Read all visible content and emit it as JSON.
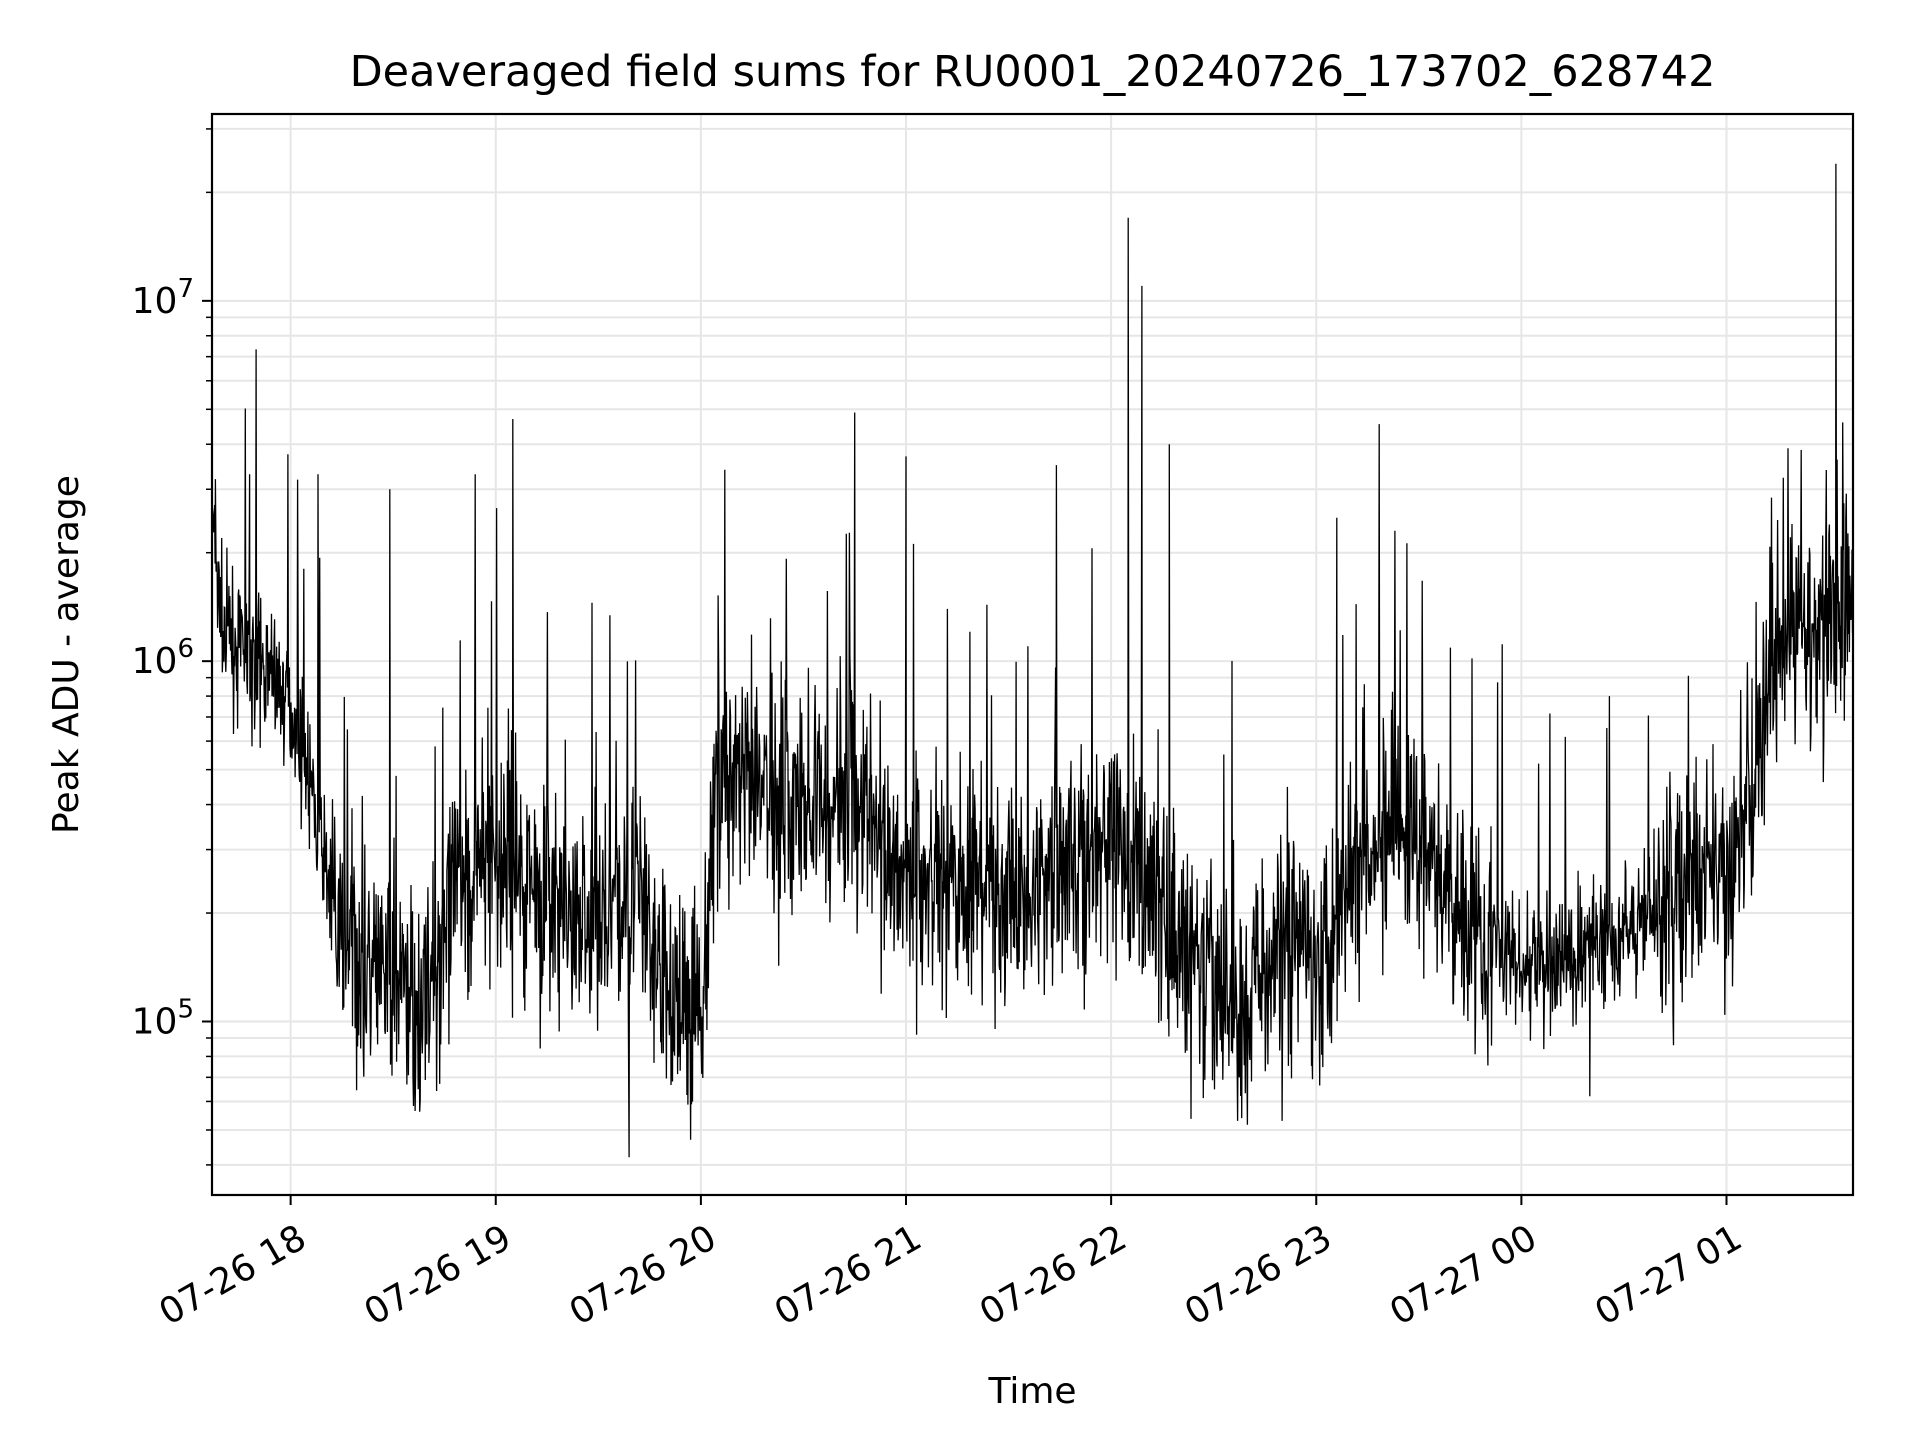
{
  "chart_data": {
    "type": "line",
    "title": "Deaveraged field sums for RU0001_20240726_173702_628742",
    "xlabel": "Time",
    "ylabel": "Peak ADU - average",
    "yscale": "log",
    "ylim": [
      33000,
      33000000
    ],
    "xlim": [
      "2024-07-26 17:37",
      "2024-07-27 01:37"
    ],
    "grid": true,
    "line_color": "#000000",
    "grid_color": "#e6e6e6",
    "x_ticks": [
      {
        "t": "2024-07-26 18:00",
        "label": "07-26 18"
      },
      {
        "t": "2024-07-26 19:00",
        "label": "07-26 19"
      },
      {
        "t": "2024-07-26 20:00",
        "label": "07-26 20"
      },
      {
        "t": "2024-07-26 21:00",
        "label": "07-26 21"
      },
      {
        "t": "2024-07-26 22:00",
        "label": "07-26 22"
      },
      {
        "t": "2024-07-26 23:00",
        "label": "07-26 23"
      },
      {
        "t": "2024-07-27 00:00",
        "label": "07-27 00"
      },
      {
        "t": "2024-07-27 01:00",
        "label": "07-27 01"
      }
    ],
    "y_ticks": [
      {
        "value": 100000,
        "base": "10",
        "exp": "5"
      },
      {
        "value": 1000000,
        "base": "10",
        "exp": "6"
      },
      {
        "value": 10000000,
        "base": "10",
        "exp": "7"
      }
    ],
    "series": [
      {
        "values": [
          [
            "2024-07-26 17:37",
            2400000
          ],
          [
            "2024-07-26 17:40",
            1200000
          ],
          [
            "2024-07-26 17:45",
            1100000
          ],
          [
            "2024-07-26 17:50",
            1000000
          ],
          [
            "2024-07-26 17:55",
            950000
          ],
          [
            "2024-07-26 18:00",
            750000
          ],
          [
            "2024-07-26 18:05",
            480000
          ],
          [
            "2024-07-26 18:10",
            260000
          ],
          [
            "2024-07-26 18:15",
            160000
          ],
          [
            "2024-07-26 18:20",
            150000
          ],
          [
            "2024-07-26 18:30",
            130000
          ],
          [
            "2024-07-26 18:40",
            110000
          ],
          [
            "2024-07-26 18:50",
            250000
          ],
          [
            "2024-07-26 19:00",
            300000
          ],
          [
            "2024-07-26 19:10",
            250000
          ],
          [
            "2024-07-26 19:20",
            200000
          ],
          [
            "2024-07-26 19:30",
            180000
          ],
          [
            "2024-07-26 19:40",
            250000
          ],
          [
            "2024-07-26 19:50",
            120000
          ],
          [
            "2024-07-26 20:00",
            110000
          ],
          [
            "2024-07-26 20:05",
            500000
          ],
          [
            "2024-07-26 20:15",
            450000
          ],
          [
            "2024-07-26 20:30",
            400000
          ],
          [
            "2024-07-26 20:45",
            450000
          ],
          [
            "2024-07-26 21:00",
            250000
          ],
          [
            "2024-07-26 21:15",
            240000
          ],
          [
            "2024-07-26 21:30",
            220000
          ],
          [
            "2024-07-26 21:45",
            280000
          ],
          [
            "2024-07-26 22:00",
            300000
          ],
          [
            "2024-07-26 22:10",
            250000
          ],
          [
            "2024-07-26 22:20",
            160000
          ],
          [
            "2024-07-26 22:30",
            120000
          ],
          [
            "2024-07-26 22:40",
            110000
          ],
          [
            "2024-07-26 22:50",
            180000
          ],
          [
            "2024-07-26 23:00",
            150000
          ],
          [
            "2024-07-26 23:15",
            350000
          ],
          [
            "2024-07-26 23:30",
            300000
          ],
          [
            "2024-07-26 23:45",
            200000
          ],
          [
            "2024-07-27 00:00",
            140000
          ],
          [
            "2024-07-27 00:15",
            150000
          ],
          [
            "2024-07-27 00:30",
            180000
          ],
          [
            "2024-07-27 00:45",
            220000
          ],
          [
            "2024-07-27 01:00",
            260000
          ],
          [
            "2024-07-27 01:05",
            350000
          ],
          [
            "2024-07-27 01:15",
            1100000
          ],
          [
            "2024-07-27 01:25",
            1200000
          ],
          [
            "2024-07-27 01:37",
            1400000
          ]
        ],
        "peaks": [
          [
            "2024-07-26 17:38",
            3200000
          ],
          [
            "2024-07-26 17:48",
            3300000
          ],
          [
            "2024-07-26 18:08",
            3300000
          ],
          [
            "2024-07-26 18:29",
            3000000
          ],
          [
            "2024-07-26 18:54",
            3300000
          ],
          [
            "2024-07-26 19:05",
            4700000
          ],
          [
            "2024-07-26 20:07",
            3400000
          ],
          [
            "2024-07-26 20:45",
            4900000
          ],
          [
            "2024-07-26 21:00",
            3700000
          ],
          [
            "2024-07-26 21:44",
            3500000
          ],
          [
            "2024-07-26 22:05",
            17000000
          ],
          [
            "2024-07-26 22:09",
            11000000
          ],
          [
            "2024-07-26 22:17",
            4000000
          ],
          [
            "2024-07-26 23:06",
            2500000
          ],
          [
            "2024-07-26 23:23",
            2300000
          ],
          [
            "2024-07-27 01:18",
            3900000
          ],
          [
            "2024-07-27 01:32",
            24000000
          ]
        ],
        "troughs": [
          [
            "2024-07-26 19:39",
            42000
          ],
          [
            "2024-07-26 19:57",
            47000
          ],
          [
            "2024-07-26 22:37",
            53000
          ],
          [
            "2024-07-26 22:50",
            53000
          ],
          [
            "2024-07-27 00:20",
            62000
          ]
        ]
      }
    ]
  }
}
